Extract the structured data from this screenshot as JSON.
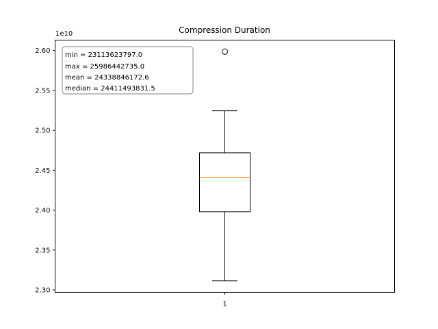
{
  "chart_data": {
    "type": "box",
    "title": "Compression Duration",
    "xlabel": "",
    "ylabel": "",
    "categories": [
      "1"
    ],
    "y_multiplier_label": "1e10",
    "ylim": [
      2.297,
      2.613
    ],
    "yticks": [
      2.3,
      2.35,
      2.4,
      2.45,
      2.5,
      2.55,
      2.6
    ],
    "ytick_labels": [
      "2.30",
      "2.35",
      "2.40",
      "2.45",
      "2.50",
      "2.55",
      "2.60"
    ],
    "box": {
      "whisker_low": 2.3114,
      "q1": 2.398,
      "median": 2.4411,
      "q3": 2.4718,
      "whisker_high": 2.5245,
      "outliers": [
        2.5986
      ]
    },
    "stats_text": [
      "min = 23113623797.0",
      "max = 25986442735.0",
      "mean = 24338846172.6",
      "median = 24411493831.5"
    ],
    "colors": {
      "median_line": "#ff7f0e",
      "box": "#000000"
    },
    "grid": false
  }
}
